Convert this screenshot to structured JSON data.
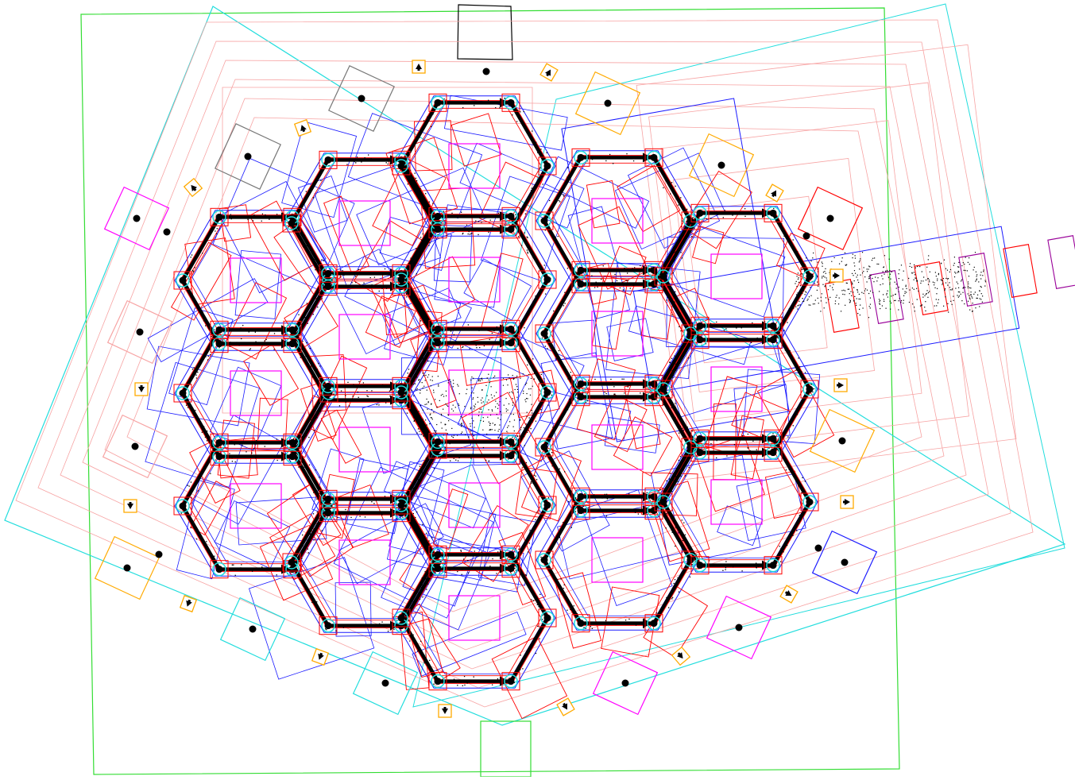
{
  "board": {
    "type": "hex-tile-board-debug-view",
    "tile_rows": [
      3,
      4,
      5,
      4,
      3
    ],
    "tile_count": 19,
    "ports": 9,
    "road_arrows": "directed",
    "colors": {
      "frame": "#33dd33",
      "frame_rotated": "#22dddd",
      "guide_lines": "#f7a3a3",
      "hull": "#1a1aff",
      "edge_outline": "#ff0000",
      "tile_center": "#ff00ff",
      "harbor": "#ff00ff",
      "harbor_alt": "#22dddd",
      "sign": "#ffaa00",
      "gray_box": "#777777",
      "vertex": "#000000",
      "vertex_marker_ring": "#22dddd",
      "arrow": "#000000",
      "scatter": "#000000"
    },
    "marker_icons": [
      "arrow-sign-icon"
    ],
    "harbor_marker": "dot-in-square-icon"
  }
}
